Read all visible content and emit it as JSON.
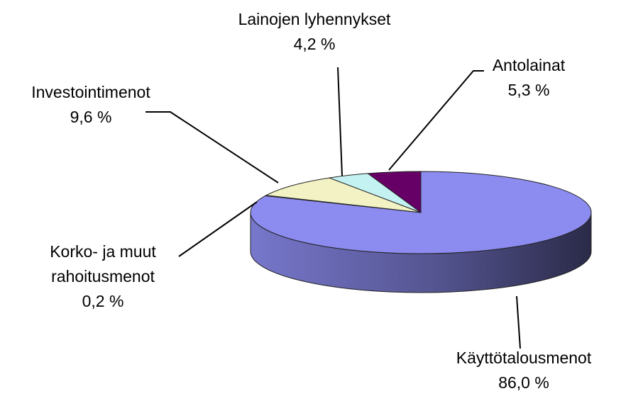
{
  "chart_data": {
    "type": "pie",
    "categories": [
      "Käyttötalousmenot",
      "Korko- ja muut rahoitusmenot",
      "Investointimenot",
      "Lainojen lyhennykset",
      "Antolainat"
    ],
    "values": [
      86.0,
      0.2,
      9.6,
      4.2,
      5.3
    ],
    "value_labels": [
      "86,0 %",
      "0,2 %",
      "9,6 %",
      "4,2 %",
      "5,3 %"
    ],
    "colors": [
      "#8c8cf0",
      "#7a1a4a",
      "#f2f2c4",
      "#c4f2f2",
      "#660066"
    ]
  }
}
